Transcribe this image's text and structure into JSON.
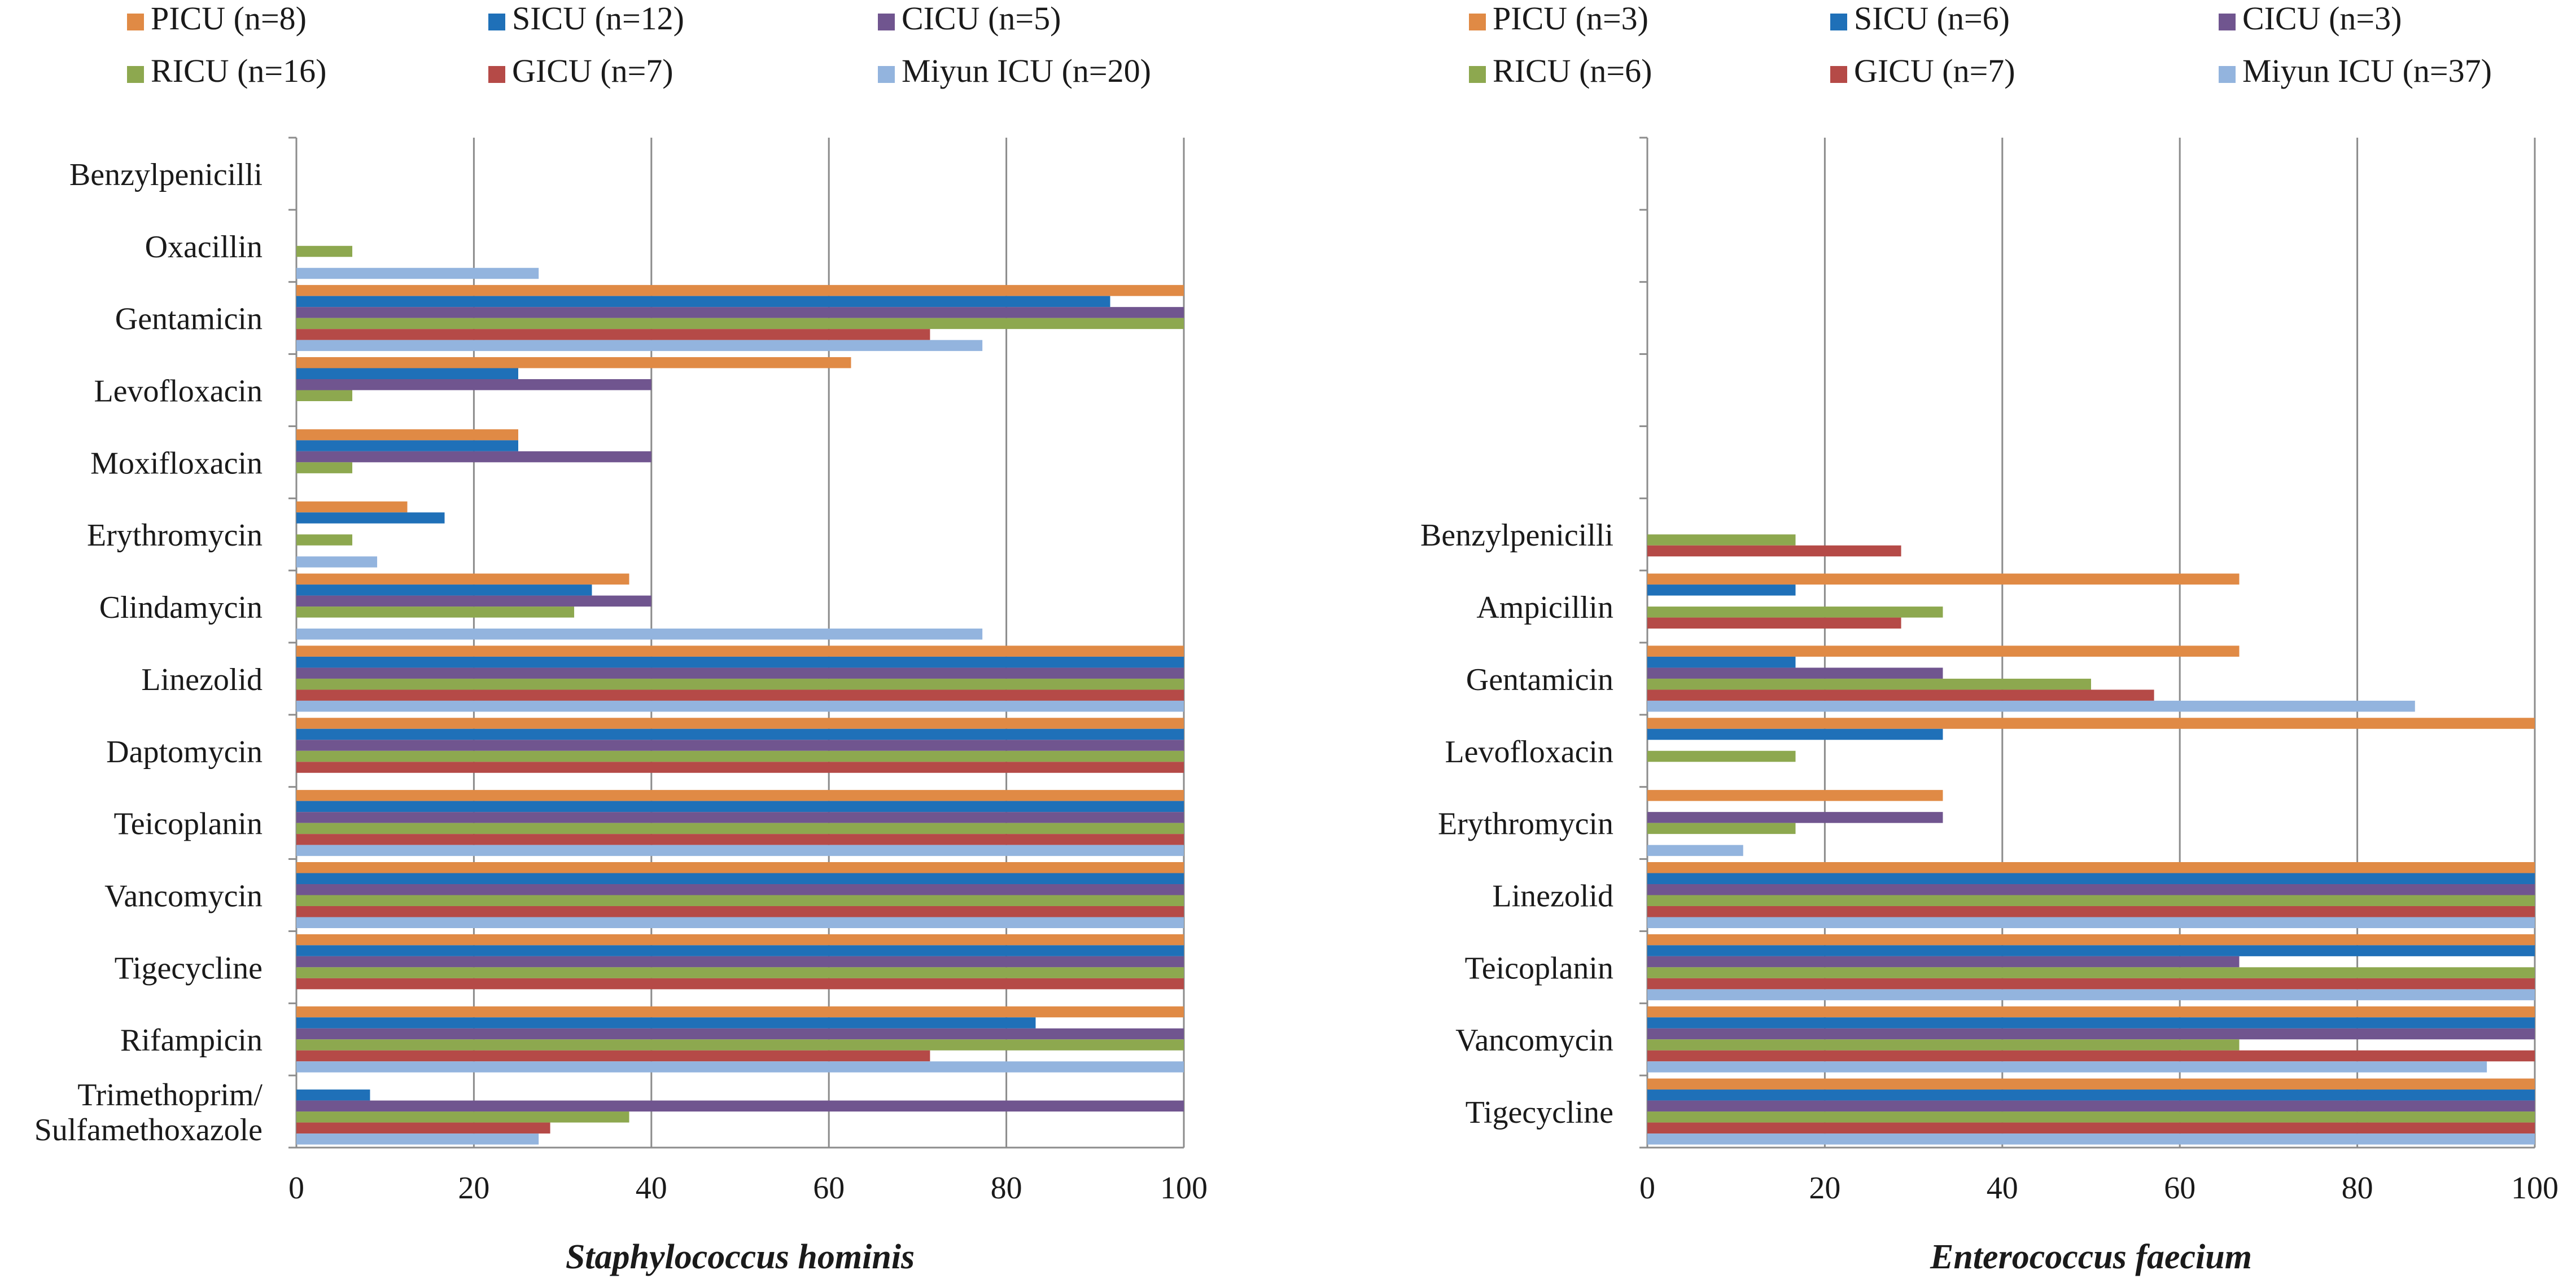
{
  "colors": {
    "PICU": "#e08a45",
    "SICU": "#1f70b8",
    "CICU": "#70558f",
    "RICU": "#8da84f",
    "GICU": "#b54a47",
    "Miyun ICU": "#93b4de"
  },
  "chart_data": [
    {
      "type": "bar",
      "orientation": "horizontal",
      "title": "",
      "xlabel": "Staphylococcus hominis",
      "ylabel": "",
      "xlim": [
        0,
        100
      ],
      "xticks": [
        "0",
        "20",
        "40",
        "60",
        "80",
        "100"
      ],
      "legend": [
        {
          "key": "PICU",
          "label": "PICU (n=8)"
        },
        {
          "key": "SICU",
          "label": "SICU (n=12)"
        },
        {
          "key": "CICU",
          "label": "CICU (n=5)"
        },
        {
          "key": "RICU",
          "label": "RICU (n=16)"
        },
        {
          "key": "GICU",
          "label": "GICU (n=7)"
        },
        {
          "key": "Miyun ICU",
          "label": "Miyun ICU (n=20)"
        }
      ],
      "categories": [
        [
          "Benzylpenicilli"
        ],
        [
          "Oxacillin"
        ],
        [
          "Gentamicin"
        ],
        [
          "Levofloxacin"
        ],
        [
          "Moxifloxacin"
        ],
        [
          "Erythromycin"
        ],
        [
          "Clindamycin"
        ],
        [
          "Linezolid"
        ],
        [
          "Daptomycin"
        ],
        [
          "Teicoplanin"
        ],
        [
          "Vancomycin"
        ],
        [
          "Tigecycline"
        ],
        [
          "Rifampicin"
        ],
        [
          "Trimethoprim/",
          "Sulfamethoxazole"
        ]
      ],
      "series": [
        {
          "name": "PICU",
          "values": [
            0,
            0,
            100,
            62.5,
            25,
            12.5,
            37.5,
            100,
            100,
            100,
            100,
            100,
            100,
            0
          ]
        },
        {
          "name": "SICU",
          "values": [
            0,
            0,
            91.7,
            25,
            25,
            16.7,
            33.3,
            100,
            100,
            100,
            100,
            100,
            83.3,
            8.3
          ]
        },
        {
          "name": "CICU",
          "values": [
            0,
            0,
            100,
            40,
            40,
            0,
            40,
            100,
            100,
            100,
            100,
            100,
            100,
            100
          ]
        },
        {
          "name": "RICU",
          "values": [
            0,
            6.3,
            100,
            6.3,
            6.3,
            6.3,
            31.3,
            100,
            100,
            100,
            100,
            100,
            100,
            37.5
          ]
        },
        {
          "name": "GICU",
          "values": [
            0,
            0,
            71.4,
            0,
            0,
            0,
            0,
            100,
            100,
            100,
            100,
            100,
            71.4,
            28.6
          ]
        },
        {
          "name": "Miyun ICU",
          "values": [
            0,
            27.3,
            77.3,
            0,
            0,
            9.1,
            77.3,
            100,
            0,
            100,
            100,
            0,
            100,
            27.3
          ]
        }
      ]
    },
    {
      "type": "bar",
      "orientation": "horizontal",
      "title": "",
      "xlabel": "Enterococcus faecium",
      "ylabel": "",
      "xlim": [
        0,
        100
      ],
      "xticks": [
        "0",
        "20",
        "40",
        "60",
        "80",
        "100"
      ],
      "legend": [
        {
          "key": "PICU",
          "label": "PICU (n=3)"
        },
        {
          "key": "SICU",
          "label": "SICU (n=6)"
        },
        {
          "key": "CICU",
          "label": "CICU (n=3)"
        },
        {
          "key": "RICU",
          "label": "RICU (n=6)"
        },
        {
          "key": "GICU",
          "label": "GICU (n=7)"
        },
        {
          "key": "Miyun ICU",
          "label": "Miyun ICU (n=37)"
        }
      ],
      "categories": [
        [],
        [],
        [],
        [],
        [],
        [
          "Benzylpenicilli"
        ],
        [
          "Ampicillin"
        ],
        [
          "Gentamicin"
        ],
        [
          "Levofloxacin"
        ],
        [
          "Erythromycin"
        ],
        [
          "Linezolid"
        ],
        [
          "Teicoplanin"
        ],
        [
          "Vancomycin"
        ],
        [
          "Tigecycline"
        ]
      ],
      "series": [
        {
          "name": "PICU",
          "values": [
            0,
            0,
            0,
            0,
            0,
            0,
            66.7,
            66.7,
            100,
            33.3,
            100,
            100,
            100,
            100
          ]
        },
        {
          "name": "SICU",
          "values": [
            0,
            0,
            0,
            0,
            0,
            0,
            16.7,
            16.7,
            33.3,
            0,
            100,
            100,
            100,
            100
          ]
        },
        {
          "name": "CICU",
          "values": [
            0,
            0,
            0,
            0,
            0,
            0,
            0,
            33.3,
            0,
            33.3,
            100,
            66.7,
            100,
            100
          ]
        },
        {
          "name": "RICU",
          "values": [
            0,
            0,
            0,
            0,
            0,
            16.7,
            33.3,
            50,
            16.7,
            16.7,
            100,
            100,
            66.7,
            100
          ]
        },
        {
          "name": "GICU",
          "values": [
            0,
            0,
            0,
            0,
            0,
            28.6,
            28.6,
            57.1,
            0,
            0,
            100,
            100,
            100,
            100
          ]
        },
        {
          "name": "Miyun ICU",
          "values": [
            0,
            0,
            0,
            0,
            0,
            0,
            0,
            86.5,
            0,
            10.8,
            100,
            100,
            94.6,
            100
          ]
        }
      ]
    }
  ]
}
